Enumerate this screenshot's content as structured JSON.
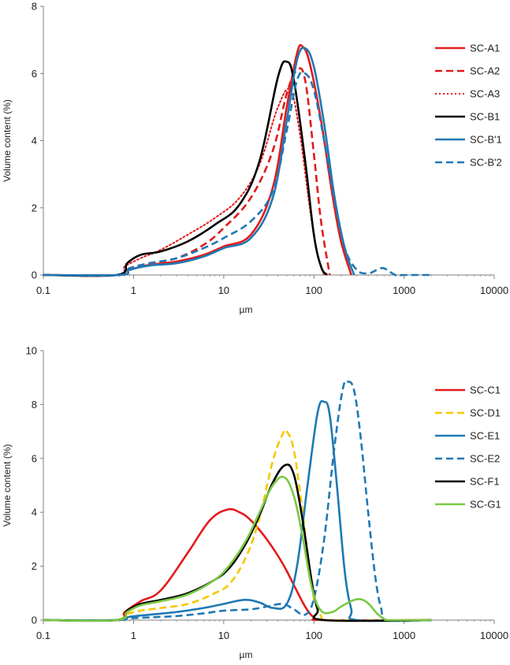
{
  "chart_data": [
    {
      "type": "line",
      "xscale": "log",
      "xlim": [
        0.1,
        10000
      ],
      "ylim": [
        0,
        8
      ],
      "yticks": [
        0,
        2,
        4,
        6,
        8
      ],
      "xticks": [
        0.1,
        1,
        10,
        100,
        1000,
        10000
      ],
      "xtick_labels": [
        "0.1",
        "1",
        "10",
        "100",
        "1000",
        "10000"
      ],
      "xlabel": "µm",
      "ylabel": "Volume content (%)",
      "grid": false,
      "legend": "right",
      "series": [
        {
          "name": "SC-A1",
          "color": "#e31a1c",
          "dash": "solid",
          "x": [
            0.1,
            0.7,
            0.9,
            1.5,
            3,
            6,
            10,
            20,
            35,
            50,
            65,
            75,
            90,
            120,
            160,
            200,
            260
          ],
          "y": [
            0,
            0,
            0.15,
            0.3,
            0.4,
            0.6,
            0.85,
            1.2,
            2.6,
            5.0,
            6.6,
            6.8,
            6.3,
            4.6,
            2.4,
            1.0,
            0
          ]
        },
        {
          "name": "SC-A2",
          "color": "#e31a1c",
          "dash": "dashed",
          "x": [
            0.1,
            0.7,
            0.9,
            1.5,
            3,
            6,
            10,
            20,
            35,
            50,
            65,
            80,
            100,
            120,
            150
          ],
          "y": [
            0,
            0,
            0.2,
            0.35,
            0.5,
            0.9,
            1.4,
            2.3,
            3.7,
            5.4,
            6.1,
            5.8,
            3.6,
            1.6,
            0
          ]
        },
        {
          "name": "SC-A3",
          "color": "#e31a1c",
          "dash": "dotted",
          "x": [
            0.1,
            0.65,
            0.8,
            1.2,
            2,
            4,
            8,
            15,
            25,
            40,
            55,
            70,
            90,
            110,
            130
          ],
          "y": [
            0,
            0,
            0.25,
            0.5,
            0.75,
            1.2,
            1.7,
            2.3,
            3.3,
            5.0,
            5.5,
            4.2,
            2.0,
            0.6,
            0
          ]
        },
        {
          "name": "SC-B1",
          "color": "#000000",
          "dash": "solid",
          "x": [
            0.1,
            0.65,
            0.85,
            1.2,
            2,
            4,
            8,
            15,
            25,
            40,
            50,
            60,
            80,
            100,
            120,
            140
          ],
          "y": [
            0,
            0,
            0.35,
            0.6,
            0.7,
            1.0,
            1.5,
            2.1,
            3.4,
            5.9,
            6.35,
            5.8,
            3.4,
            1.2,
            0.25,
            0
          ]
        },
        {
          "name": "SC-B'1",
          "color": "#1f78b4",
          "dash": "solid",
          "x": [
            0.1,
            0.7,
            0.9,
            1.5,
            3,
            6,
            10,
            20,
            35,
            50,
            65,
            80,
            100,
            130,
            170,
            220,
            280
          ],
          "y": [
            0,
            0,
            0.15,
            0.28,
            0.35,
            0.55,
            0.8,
            1.1,
            2.3,
            4.6,
            6.4,
            6.75,
            6.2,
            4.5,
            2.3,
            0.8,
            0
          ]
        },
        {
          "name": "SC-B'2",
          "color": "#1f78b4",
          "dash": "dashed",
          "x": [
            0.1,
            0.7,
            0.9,
            1.5,
            3,
            6,
            10,
            20,
            35,
            50,
            65,
            80,
            100,
            130,
            170,
            220,
            300,
            400,
            500,
            600,
            800,
            1000,
            2000
          ],
          "y": [
            0,
            0,
            0.2,
            0.35,
            0.5,
            0.8,
            1.1,
            1.6,
            2.5,
            4.3,
            5.8,
            6.0,
            5.5,
            4.0,
            2.2,
            0.8,
            0.15,
            0.05,
            0.15,
            0.2,
            0,
            0,
            0
          ]
        }
      ]
    },
    {
      "type": "line",
      "xscale": "log",
      "xlim": [
        0.1,
        10000
      ],
      "ylim": [
        0,
        10
      ],
      "yticks": [
        0,
        2,
        4,
        6,
        8,
        10
      ],
      "xticks": [
        0.1,
        1,
        10,
        100,
        1000,
        10000
      ],
      "xtick_labels": [
        "0.1",
        "1",
        "10",
        "100",
        "1000",
        "10000"
      ],
      "xlabel": "µm",
      "ylabel": "Volume content (%)",
      "grid": false,
      "legend": "right",
      "series": [
        {
          "name": "SC-C1",
          "color": "#e31a1c",
          "dash": "solid",
          "x": [
            0.1,
            0.65,
            0.8,
            1.2,
            2,
            4,
            7,
            11,
            15,
            20,
            30,
            45,
            60,
            80,
            100,
            130,
            2000
          ],
          "y": [
            0,
            0,
            0.3,
            0.7,
            1.1,
            2.5,
            3.7,
            4.1,
            4.0,
            3.7,
            3.0,
            2.1,
            1.3,
            0.5,
            0.1,
            0,
            0
          ]
        },
        {
          "name": "SC-D1",
          "color": "#f5c800",
          "dash": "dashed",
          "x": [
            0.1,
            0.65,
            0.8,
            1.2,
            2,
            4,
            8,
            12,
            18,
            25,
            35,
            45,
            50,
            60,
            75,
            95,
            120,
            150,
            2000
          ],
          "y": [
            0,
            0,
            0.2,
            0.35,
            0.45,
            0.6,
            1.0,
            1.4,
            2.4,
            3.8,
            5.9,
            6.9,
            7.0,
            6.3,
            4.0,
            1.2,
            0.15,
            0,
            0
          ]
        },
        {
          "name": "SC-E1",
          "color": "#1f78b4",
          "dash": "solid",
          "x": [
            0.1,
            0.65,
            0.9,
            1.5,
            3,
            6,
            10,
            17,
            25,
            35,
            50,
            65,
            85,
            110,
            130,
            150,
            180,
            220,
            260,
            300,
            2000
          ],
          "y": [
            0,
            0,
            0.12,
            0.2,
            0.3,
            0.45,
            0.6,
            0.75,
            0.65,
            0.45,
            0.6,
            2.0,
            5.0,
            7.7,
            8.1,
            7.6,
            5.0,
            1.8,
            0.4,
            0,
            0
          ]
        },
        {
          "name": "SC-E2",
          "color": "#1f78b4",
          "dash": "dashed",
          "x": [
            0.1,
            0.65,
            0.9,
            1.5,
            3,
            6,
            10,
            20,
            30,
            45,
            60,
            80,
            100,
            130,
            170,
            210,
            240,
            280,
            330,
            400,
            480,
            560,
            650,
            2000
          ],
          "y": [
            0,
            0,
            0.06,
            0.1,
            0.15,
            0.25,
            0.35,
            0.4,
            0.5,
            0.6,
            0.4,
            0.2,
            0.8,
            3.0,
            6.5,
            8.6,
            8.85,
            8.5,
            6.8,
            4.0,
            1.6,
            0.4,
            0,
            0
          ]
        },
        {
          "name": "SC-F1",
          "color": "#000000",
          "dash": "solid",
          "x": [
            0.1,
            0.65,
            0.85,
            1.2,
            2,
            4,
            8,
            12,
            18,
            25,
            35,
            48,
            60,
            75,
            95,
            110,
            130,
            2000
          ],
          "y": [
            0,
            0,
            0.35,
            0.6,
            0.75,
            1.0,
            1.5,
            2.0,
            2.9,
            3.9,
            5.1,
            5.75,
            5.4,
            3.7,
            1.4,
            0.4,
            0,
            0
          ]
        },
        {
          "name": "SC-G1",
          "color": "#7ac943",
          "dash": "solid",
          "x": [
            0.1,
            0.65,
            0.85,
            1.2,
            2,
            4,
            8,
            12,
            18,
            25,
            35,
            47,
            60,
            75,
            95,
            120,
            160,
            200,
            280,
            350,
            420,
            500,
            600,
            700,
            2000
          ],
          "y": [
            0,
            0,
            0.3,
            0.55,
            0.7,
            0.95,
            1.5,
            2.1,
            3.0,
            4.0,
            5.0,
            5.3,
            4.6,
            3.1,
            1.2,
            0.35,
            0.3,
            0.5,
            0.75,
            0.75,
            0.55,
            0.25,
            0.05,
            0,
            0
          ]
        }
      ]
    }
  ]
}
